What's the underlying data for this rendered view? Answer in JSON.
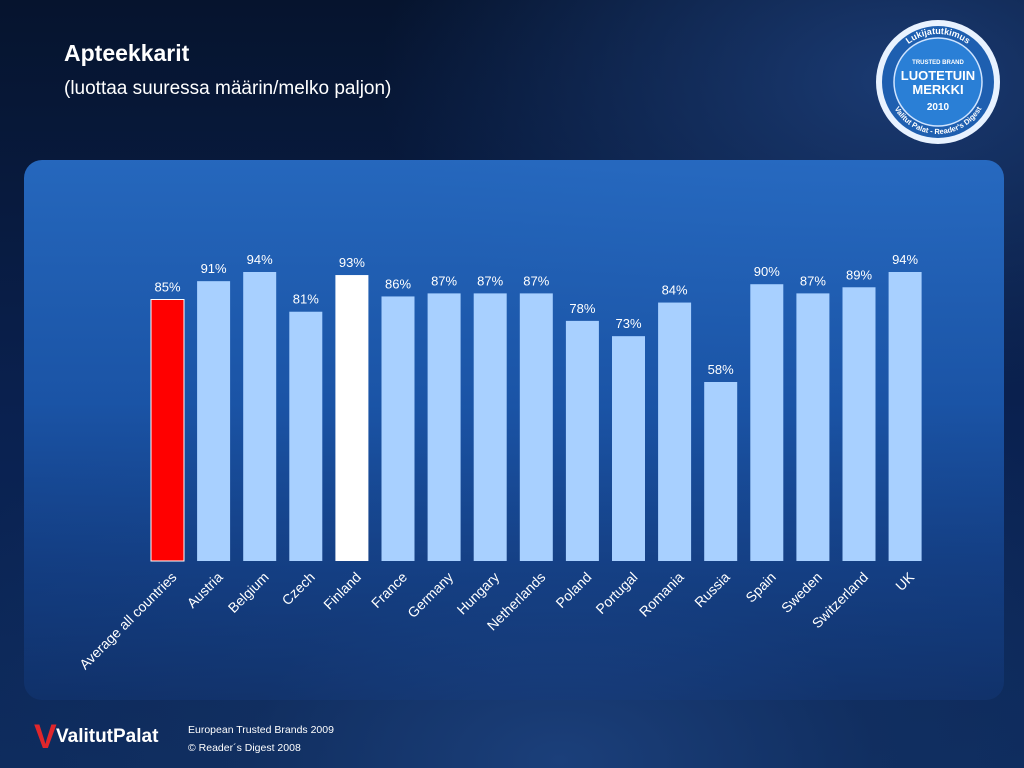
{
  "header": {
    "title": "Apteekkarit",
    "subtitle": "(luottaa suuressa määrin/melko paljon)"
  },
  "badge": {
    "top_text": "Lukijatutkimus",
    "brand": "TRUSTED BRAND",
    "line1": "LUOTETUIN",
    "line2": "MERKKI",
    "year": "2010",
    "bottom_text": "Valitut Palat - Reader's Digest"
  },
  "footer": {
    "logo": "ValitutPalat",
    "line1": "European Trusted Brands 2009",
    "line2": "© Reader´s Digest 2008"
  },
  "colors": {
    "bar_default": "#a8d0ff",
    "bar_highlight_average": "#ff0000",
    "bar_highlight_finland": "#ffffff",
    "panel": "#2a6cc4"
  },
  "chart_data": {
    "type": "bar",
    "categories": [
      "Average all countries",
      "Austria",
      "Belgium",
      "Czech",
      "Finland",
      "France",
      "Germany",
      "Hungary",
      "Netherlands",
      "Poland",
      "Portugal",
      "Romania",
      "Russia",
      "Spain",
      "Sweden",
      "Switzerland",
      "UK"
    ],
    "values": [
      85,
      91,
      94,
      81,
      93,
      86,
      87,
      87,
      87,
      78,
      73,
      84,
      58,
      90,
      87,
      89,
      94
    ],
    "labels": [
      "85%",
      "91%",
      "94%",
      "81%",
      "93%",
      "86%",
      "87%",
      "87%",
      "87%",
      "78%",
      "73%",
      "84%",
      "58%",
      "90%",
      "87%",
      "89%",
      "94%"
    ],
    "highlight": {
      "Average all countries": "red",
      "Finland": "white"
    },
    "ylim": [
      0,
      100
    ],
    "grid": false,
    "legend": "none"
  }
}
